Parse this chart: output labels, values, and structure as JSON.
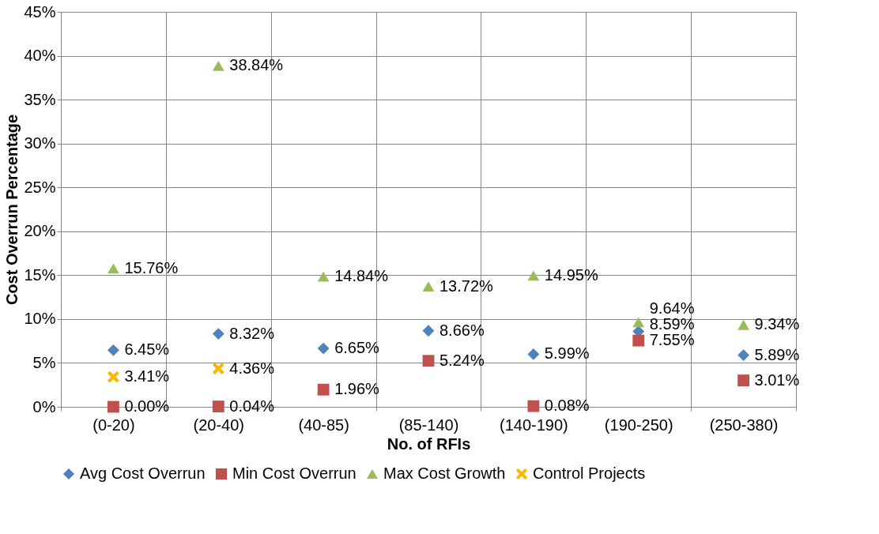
{
  "chart_data": {
    "type": "scatter",
    "xlabel": "No. of RFIs",
    "ylabel": "Cost  Overrun Percentage",
    "categories": [
      "(0-20)",
      "(20-40)",
      "(40-85)",
      "(85-140)",
      "(140-190)",
      "(190-250)",
      "(250-380)"
    ],
    "series": [
      {
        "name": "Avg Cost Overrun",
        "color": "#4f81bd",
        "marker": "diamond",
        "values": [
          6.45,
          8.32,
          6.65,
          8.66,
          5.99,
          8.59,
          5.89
        ],
        "value_labels": [
          "6.45%",
          "8.32%",
          "6.65%",
          "8.66%",
          "5.99%",
          "8.59%",
          "5.89%"
        ]
      },
      {
        "name": "Min Cost Overrun",
        "color": "#c0504d",
        "marker": "square",
        "values": [
          0.0,
          0.04,
          1.96,
          5.24,
          0.08,
          7.55,
          3.01
        ],
        "value_labels": [
          "0.00%",
          "0.04%",
          "1.96%",
          "5.24%",
          "0.08%",
          "7.55%",
          "3.01%"
        ]
      },
      {
        "name": "Max Cost Growth",
        "color": "#9bbb59",
        "marker": "triangle",
        "values": [
          15.76,
          38.84,
          14.84,
          13.72,
          14.95,
          9.64,
          9.34
        ],
        "value_labels": [
          "15.76%",
          "38.84%",
          "14.84%",
          "13.72%",
          "14.95%",
          "9.64%",
          "9.34%"
        ]
      },
      {
        "name": "Control Projects",
        "color": "#f9b800",
        "marker": "cross",
        "values": [
          3.41,
          4.36,
          null,
          null,
          null,
          null,
          null
        ],
        "value_labels": [
          "3.41%",
          "4.36%",
          null,
          null,
          null,
          null,
          null
        ]
      }
    ],
    "ylim": [
      0,
      45
    ],
    "yticks": [
      {
        "value": 0,
        "label": "0%"
      },
      {
        "value": 5,
        "label": "5%"
      },
      {
        "value": 10,
        "label": "10%"
      },
      {
        "value": 15,
        "label": "15%"
      },
      {
        "value": 20,
        "label": "20%"
      },
      {
        "value": 25,
        "label": "25%"
      },
      {
        "value": 30,
        "label": "30%"
      },
      {
        "value": 35,
        "label": "35%"
      },
      {
        "value": 40,
        "label": "40%"
      },
      {
        "value": 45,
        "label": "45%"
      }
    ],
    "grid": true,
    "legend": "bottom"
  }
}
